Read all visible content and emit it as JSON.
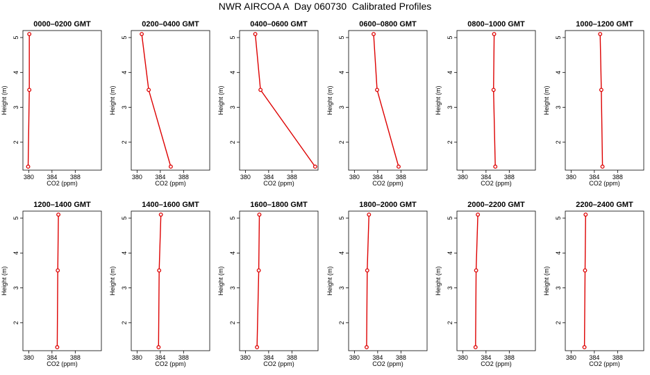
{
  "title": "NWR AIRCOA A  Day 060730  Calibrated Profiles",
  "colors": {
    "profile_line": "#dd0000",
    "axis": "#000000",
    "background": "#ffffff"
  },
  "chart_data": [
    {
      "type": "line",
      "title": "0000–0200 GMT",
      "xlabel": "CO2 (ppm)",
      "ylabel": "Height (m)",
      "xlim": [
        379,
        392.5
      ],
      "ylim": [
        1.2,
        5.2
      ],
      "xticks": [
        380,
        384,
        388
      ],
      "yticks": [
        2,
        3,
        4,
        5
      ],
      "series": [
        {
          "x": [
            379.9,
            380.1,
            380.1
          ],
          "y": [
            1.3,
            3.5,
            5.1
          ]
        }
      ]
    },
    {
      "type": "line",
      "title": "0200–0400 GMT",
      "xlabel": "CO2 (ppm)",
      "ylabel": "Height (m)",
      "xlim": [
        379,
        392.5
      ],
      "ylim": [
        1.2,
        5.2
      ],
      "xticks": [
        380,
        384,
        388
      ],
      "yticks": [
        2,
        3,
        4,
        5
      ],
      "series": [
        {
          "x": [
            385.8,
            382.0,
            380.8
          ],
          "y": [
            1.3,
            3.5,
            5.1
          ]
        }
      ]
    },
    {
      "type": "line",
      "title": "0400–0600 GMT",
      "xlabel": "CO2 (ppm)",
      "ylabel": "Height (m)",
      "xlim": [
        379,
        392.5
      ],
      "ylim": [
        1.2,
        5.2
      ],
      "xticks": [
        380,
        384,
        388
      ],
      "yticks": [
        2,
        3,
        4,
        5
      ],
      "series": [
        {
          "x": [
            392.0,
            382.6,
            381.7
          ],
          "y": [
            1.3,
            3.5,
            5.1
          ]
        }
      ]
    },
    {
      "type": "line",
      "title": "0600–0800 GMT",
      "xlabel": "CO2 (ppm)",
      "ylabel": "Height (m)",
      "xlim": [
        379,
        392.5
      ],
      "ylim": [
        1.2,
        5.2
      ],
      "xticks": [
        380,
        384,
        388
      ],
      "yticks": [
        2,
        3,
        4,
        5
      ],
      "series": [
        {
          "x": [
            387.6,
            383.9,
            383.3
          ],
          "y": [
            1.3,
            3.5,
            5.1
          ]
        }
      ]
    },
    {
      "type": "line",
      "title": "0800–1000 GMT",
      "xlabel": "CO2 (ppm)",
      "ylabel": "Height (m)",
      "xlim": [
        379,
        392.5
      ],
      "ylim": [
        1.2,
        5.2
      ],
      "xticks": [
        380,
        384,
        388
      ],
      "yticks": [
        2,
        3,
        4,
        5
      ],
      "series": [
        {
          "x": [
            385.6,
            385.3,
            385.4
          ],
          "y": [
            1.3,
            3.5,
            5.1
          ]
        }
      ]
    },
    {
      "type": "line",
      "title": "1000–1200 GMT",
      "xlabel": "CO2 (ppm)",
      "ylabel": "Height (m)",
      "xlim": [
        379,
        392.5
      ],
      "ylim": [
        1.2,
        5.2
      ],
      "xticks": [
        380,
        384,
        388
      ],
      "yticks": [
        2,
        3,
        4,
        5
      ],
      "series": [
        {
          "x": [
            385.4,
            385.2,
            385.0
          ],
          "y": [
            1.3,
            3.5,
            5.1
          ]
        }
      ]
    },
    {
      "type": "line",
      "title": "1200–1400 GMT",
      "xlabel": "CO2 (ppm)",
      "ylabel": "Height (m)",
      "xlim": [
        379,
        392.5
      ],
      "ylim": [
        1.2,
        5.2
      ],
      "xticks": [
        380,
        384,
        388
      ],
      "yticks": [
        2,
        3,
        4,
        5
      ],
      "series": [
        {
          "x": [
            384.9,
            385.0,
            385.1
          ],
          "y": [
            1.3,
            3.5,
            5.1
          ]
        }
      ]
    },
    {
      "type": "line",
      "title": "1400–1600 GMT",
      "xlabel": "CO2 (ppm)",
      "ylabel": "Height (m)",
      "xlim": [
        379,
        392.5
      ],
      "ylim": [
        1.2,
        5.2
      ],
      "xticks": [
        380,
        384,
        388
      ],
      "yticks": [
        2,
        3,
        4,
        5
      ],
      "series": [
        {
          "x": [
            383.7,
            383.8,
            384.1
          ],
          "y": [
            1.3,
            3.5,
            5.1
          ]
        }
      ]
    },
    {
      "type": "line",
      "title": "1600–1800 GMT",
      "xlabel": "CO2 (ppm)",
      "ylabel": "Height (m)",
      "xlim": [
        379,
        392.5
      ],
      "ylim": [
        1.2,
        5.2
      ],
      "xticks": [
        380,
        384,
        388
      ],
      "yticks": [
        2,
        3,
        4,
        5
      ],
      "series": [
        {
          "x": [
            382.0,
            382.3,
            382.4
          ],
          "y": [
            1.3,
            3.5,
            5.1
          ]
        }
      ]
    },
    {
      "type": "line",
      "title": "1800–2000 GMT",
      "xlabel": "CO2 (ppm)",
      "ylabel": "Height (m)",
      "xlim": [
        379,
        392.5
      ],
      "ylim": [
        1.2,
        5.2
      ],
      "xticks": [
        380,
        384,
        388
      ],
      "yticks": [
        2,
        3,
        4,
        5
      ],
      "series": [
        {
          "x": [
            382.1,
            382.2,
            382.5
          ],
          "y": [
            1.3,
            3.5,
            5.1
          ]
        }
      ]
    },
    {
      "type": "line",
      "title": "2000–2200 GMT",
      "xlabel": "CO2 (ppm)",
      "ylabel": "Height (m)",
      "xlim": [
        379,
        392.5
      ],
      "ylim": [
        1.2,
        5.2
      ],
      "xticks": [
        380,
        384,
        388
      ],
      "yticks": [
        2,
        3,
        4,
        5
      ],
      "series": [
        {
          "x": [
            382.2,
            382.3,
            382.6
          ],
          "y": [
            1.3,
            3.5,
            5.1
          ]
        }
      ]
    },
    {
      "type": "line",
      "title": "2200–2400 GMT",
      "xlabel": "CO2 (ppm)",
      "ylabel": "Height (m)",
      "xlim": [
        379,
        392.5
      ],
      "ylim": [
        1.2,
        5.2
      ],
      "xticks": [
        380,
        384,
        388
      ],
      "yticks": [
        2,
        3,
        4,
        5
      ],
      "series": [
        {
          "x": [
            382.3,
            382.4,
            382.5
          ],
          "y": [
            1.3,
            3.5,
            5.1
          ]
        }
      ]
    }
  ]
}
